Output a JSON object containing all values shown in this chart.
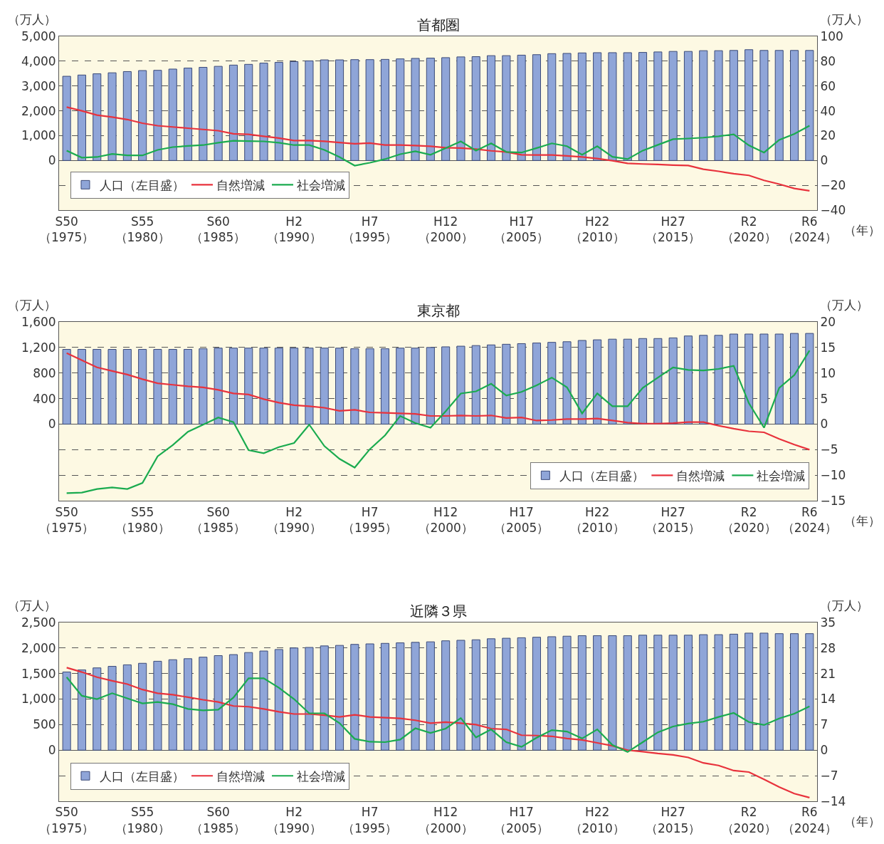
{
  "chart_data": [
    {
      "type": "bar",
      "title": "首都圏",
      "ylabel": "（万人）",
      "y2label": "（万人）",
      "xlabel": "（年）",
      "categories": [
        "S50\n（1975）",
        null,
        null,
        null,
        null,
        "S55\n（1980）",
        null,
        null,
        null,
        null,
        "S60\n（1985）",
        null,
        null,
        null,
        null,
        "H2\n（1990）",
        null,
        null,
        null,
        null,
        "H7\n（1995）",
        null,
        null,
        null,
        null,
        "H12\n（2000）",
        null,
        null,
        null,
        null,
        "H17\n（2005）",
        null,
        null,
        null,
        null,
        "H22\n（2010）",
        null,
        null,
        null,
        null,
        "H27\n（2015）",
        null,
        null,
        null,
        null,
        "R2\n（2020）",
        null,
        null,
        null,
        "R6\n（2024）"
      ],
      "series": [
        {
          "name": "人口（左目盛）",
          "color": "#8fa5d8",
          "values": [
            3390,
            3440,
            3490,
            3530,
            3580,
            3620,
            3630,
            3680,
            3720,
            3750,
            3790,
            3840,
            3870,
            3920,
            3950,
            3980,
            4010,
            4050,
            4050,
            4060,
            4060,
            4070,
            4090,
            4110,
            4120,
            4140,
            4170,
            4180,
            4220,
            4220,
            4240,
            4260,
            4300,
            4310,
            4330,
            4340,
            4340,
            4340,
            4350,
            4370,
            4390,
            4390,
            4420,
            4420,
            4430,
            4460,
            4430,
            4430,
            4430,
            4430
          ]
        },
        {
          "name": "自然増減",
          "type": "line",
          "axis": "y2",
          "color": "#e8323c",
          "values": [
            43,
            40,
            36.5,
            35,
            33,
            30,
            28,
            27,
            26,
            25,
            24,
            21.5,
            21,
            19.5,
            18,
            16,
            16,
            15.5,
            14.5,
            13.5,
            14,
            12.5,
            12.5,
            12,
            11.5,
            10.3,
            10,
            9.2,
            7.8,
            6.9,
            4.6,
            4.4,
            4.4,
            3.7,
            2.8,
            1.6,
            -0.2,
            -2.3,
            -2.8,
            -3.2,
            -3.7,
            -4,
            -7,
            -8.7,
            -10.6,
            -12,
            -16,
            -19,
            -22.5,
            -24.4
          ]
        },
        {
          "name": "社会増減",
          "type": "line",
          "axis": "y2",
          "color": "#1aab4f",
          "values": [
            8,
            2.3,
            2.8,
            5.3,
            4.1,
            4.1,
            8.5,
            10.8,
            11.7,
            12.4,
            14.3,
            15.9,
            15.6,
            15.4,
            14.3,
            12.4,
            12.4,
            8.5,
            2.8,
            -4.1,
            -1.8,
            1.1,
            5.1,
            7.4,
            4.6,
            10,
            15.4,
            8,
            13.8,
            6.9,
            6.4,
            10,
            13.8,
            11.5,
            4.6,
            11.5,
            3,
            1.1,
            8,
            12.6,
            17.2,
            17.7,
            18.4,
            19.5,
            21.1,
            12.2,
            6.4,
            16.6,
            21.4,
            28
          ]
        }
      ],
      "ylim": [
        -2000,
        5000
      ],
      "yticks": [
        0,
        {
          "value": 1000,
          "label": "1,000"
        },
        {
          "value": 2000,
          "label": "2,000"
        },
        {
          "value": 3000,
          "label": "3,000"
        },
        {
          "value": 4000,
          "label": "4,000"
        },
        {
          "value": 5000,
          "label": "5,000"
        }
      ],
      "y2lim": [
        -40,
        100
      ],
      "y2ticks": [
        {
          "value": -40,
          "label": "−40"
        },
        {
          "value": -20,
          "label": "−20"
        },
        0,
        20,
        40,
        60,
        80,
        100
      ],
      "grid": true,
      "legend": "bottom left"
    },
    {
      "type": "bar",
      "title": "東京都",
      "ylabel": "（万人）",
      "y2label": "（万人）",
      "xlabel": "（年）",
      "categories": [
        "S50\n（1975）",
        null,
        null,
        null,
        null,
        "S55\n（1980）",
        null,
        null,
        null,
        null,
        "S60\n（1985）",
        null,
        null,
        null,
        null,
        "H2\n（1990）",
        null,
        null,
        null,
        null,
        "H7\n（1995）",
        null,
        null,
        null,
        null,
        "H12\n（2000）",
        null,
        null,
        null,
        null,
        "H17\n（2005）",
        null,
        null,
        null,
        null,
        "H22\n（2010）",
        null,
        null,
        null,
        null,
        "H27\n（2015）",
        null,
        null,
        null,
        null,
        "R2\n（2020）",
        null,
        null,
        null,
        "R6\n（2024）"
      ],
      "series": [
        {
          "name": "人口（左目盛）",
          "color": "#8fa5d8",
          "values": [
            1170,
            1170,
            1170,
            1170,
            1170,
            1170,
            1170,
            1170,
            1170,
            1180,
            1190,
            1190,
            1190,
            1190,
            1190,
            1190,
            1190,
            1190,
            1190,
            1180,
            1180,
            1180,
            1190,
            1190,
            1200,
            1210,
            1220,
            1230,
            1240,
            1250,
            1260,
            1270,
            1280,
            1290,
            1310,
            1320,
            1330,
            1330,
            1340,
            1340,
            1350,
            1380,
            1390,
            1390,
            1410,
            1410,
            1410,
            1410,
            1420,
            1420
          ]
        },
        {
          "name": "自然増減",
          "type": "line",
          "axis": "y2",
          "color": "#e8323c",
          "values": [
            13.9,
            12.5,
            11.1,
            10.4,
            9.7,
            8.8,
            8,
            7.7,
            7.4,
            7.2,
            6.7,
            6,
            5.8,
            4.9,
            4.2,
            3.7,
            3.5,
            3.2,
            2.6,
            2.8,
            2.3,
            2.2,
            2.1,
            2,
            1.6,
            1.6,
            1.7,
            1.6,
            1.7,
            1.2,
            1.3,
            0.7,
            0.8,
            1,
            1,
            1.1,
            0.7,
            0.3,
            0.1,
            0.1,
            0.2,
            0.4,
            0.4,
            -0.3,
            -0.9,
            -1.4,
            -1.6,
            -2.9,
            -4,
            -5
          ]
        },
        {
          "name": "社会増減",
          "type": "line",
          "axis": "y2",
          "color": "#1aab4f",
          "values": [
            -13.5,
            -13.4,
            -12.7,
            -12.4,
            -12.7,
            -11.5,
            -6.3,
            -4.1,
            -1.5,
            -0.1,
            1.3,
            0.4,
            -5.1,
            -5.7,
            -4.5,
            -3.7,
            -0.1,
            -4.3,
            -6.8,
            -8.5,
            -4.9,
            -2.2,
            1.6,
            0.2,
            -0.7,
            2.5,
            6,
            6.4,
            7.9,
            5.6,
            6.3,
            7.6,
            9.1,
            7.2,
            2.1,
            6,
            3.5,
            3.5,
            7.1,
            9.1,
            11.1,
            10.6,
            10.5,
            10.8,
            11.4,
            4.1,
            -0.7,
            7.1,
            9.6,
            14.4
          ]
        }
      ],
      "ylim": [
        -1200,
        1600
      ],
      "yticks": [
        0,
        400,
        800,
        {
          "value": 1200,
          "label": "1,200"
        },
        {
          "value": 1600,
          "label": "1,600"
        }
      ],
      "y2lim": [
        -15,
        20
      ],
      "y2ticks": [
        {
          "value": -15,
          "label": "−15"
        },
        {
          "value": -10,
          "label": "−10"
        },
        {
          "value": -5,
          "label": "−5"
        },
        0,
        5,
        10,
        15,
        20
      ],
      "grid": true,
      "legend": "bottom right"
    },
    {
      "type": "bar",
      "title": "近隣３県",
      "ylabel": "（万人）",
      "y2label": "（万人）",
      "xlabel": "（年）",
      "categories": [
        "S50\n（1975）",
        null,
        null,
        null,
        null,
        "S55\n（1980）",
        null,
        null,
        null,
        null,
        "S60\n（1985）",
        null,
        null,
        null,
        null,
        "H2\n（1990）",
        null,
        null,
        null,
        null,
        "H7\n（1995）",
        null,
        null,
        null,
        null,
        "H12\n（2000）",
        null,
        null,
        null,
        null,
        "H17\n（2005）",
        null,
        null,
        null,
        null,
        "H22\n（2010）",
        null,
        null,
        null,
        null,
        "H27\n（2015）",
        null,
        null,
        null,
        null,
        "R2\n（2020）",
        null,
        null,
        null,
        "R6\n（2024）"
      ],
      "series": [
        {
          "name": "人口（左目盛）",
          "color": "#8fa5d8",
          "values": [
            1530,
            1570,
            1610,
            1640,
            1670,
            1700,
            1740,
            1770,
            1790,
            1820,
            1850,
            1870,
            1910,
            1940,
            1970,
            2000,
            2010,
            2040,
            2050,
            2070,
            2080,
            2090,
            2100,
            2110,
            2120,
            2140,
            2150,
            2160,
            2180,
            2190,
            2200,
            2210,
            2220,
            2230,
            2240,
            2240,
            2240,
            2240,
            2250,
            2250,
            2250,
            2250,
            2260,
            2260,
            2270,
            2290,
            2290,
            2280,
            2280,
            2280
          ]
        },
        {
          "name": "自然増減",
          "type": "line",
          "axis": "y2",
          "color": "#e8323c",
          "values": [
            22.6,
            21.4,
            20,
            19,
            18.1,
            16.6,
            15.6,
            15.2,
            14.5,
            13.8,
            13.2,
            12.1,
            11.9,
            11.3,
            10.5,
            9.9,
            9.9,
            9.6,
            9.1,
            9.7,
            9.1,
            8.9,
            8.7,
            8.2,
            7.4,
            7.7,
            7.4,
            7,
            5.9,
            5.7,
            4.1,
            4,
            3.8,
            3.2,
            2.8,
            2,
            1.2,
            0,
            -0.4,
            -0.9,
            -1.3,
            -2,
            -3.5,
            -4.2,
            -5.6,
            -6,
            -8,
            -10.1,
            -11.9,
            -13
          ]
        },
        {
          "name": "社会増減",
          "type": "line",
          "axis": "y2",
          "color": "#1aab4f",
          "values": [
            20,
            14.9,
            14,
            15.6,
            14.2,
            12.8,
            13.2,
            12.6,
            11.3,
            10.9,
            11.1,
            14.4,
            19.7,
            19.7,
            17.1,
            14,
            10.1,
            10.1,
            7.4,
            3.1,
            2.3,
            2.2,
            2.9,
            6,
            4.7,
            5.9,
            8.8,
            3.5,
            5.7,
            2.2,
            0.9,
            3.4,
            5.5,
            5.1,
            3.2,
            5.7,
            1.4,
            -0.5,
            2.2,
            4.9,
            6.5,
            7.3,
            7.8,
            9.1,
            10.2,
            7.7,
            6.9,
            8.7,
            10,
            12
          ]
        }
      ],
      "ylim": [
        -1000,
        2500
      ],
      "yticks": [
        0,
        500,
        {
          "value": 1000,
          "label": "1,000"
        },
        {
          "value": 1500,
          "label": "1,500"
        },
        {
          "value": 2000,
          "label": "2,000"
        },
        {
          "value": 2500,
          "label": "2,500"
        }
      ],
      "y2lim": [
        -14,
        35
      ],
      "y2ticks": [
        {
          "value": -14,
          "label": "−14"
        },
        {
          "value": -7,
          "label": "−7"
        },
        0,
        7,
        14,
        21,
        28,
        35
      ],
      "grid": true,
      "legend": "bottom left"
    }
  ]
}
